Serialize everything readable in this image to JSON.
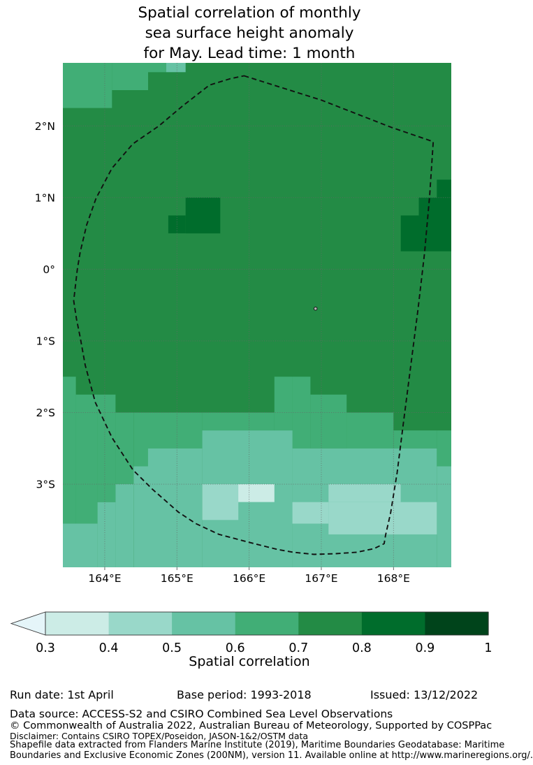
{
  "chart_data": {
    "type": "heatmap",
    "title": "Spatial correlation of monthly sea surface height anomaly for May. Lead time: 1 month",
    "title_lines": [
      "Spatial correlation of monthly",
      "sea surface height anomaly",
      "for May. Lead time: 1 month"
    ],
    "grid": true,
    "legend_position": "colorbar-bottom",
    "extent": {
      "lon_min": 163.42,
      "lon_max": 168.8,
      "lat_min": -4.16,
      "lat_max": 2.88
    },
    "x_ticks": [
      {
        "label": "164°E",
        "lon": 164
      },
      {
        "label": "165°E",
        "lon": 165
      },
      {
        "label": "166°E",
        "lon": 166
      },
      {
        "label": "167°E",
        "lon": 167
      },
      {
        "label": "168°E",
        "lon": 168
      }
    ],
    "y_ticks": [
      {
        "label": "2°N",
        "lat": 2
      },
      {
        "label": "1°N",
        "lat": 1
      },
      {
        "label": "0°",
        "lat": 0
      },
      {
        "label": "1°S",
        "lat": -1
      },
      {
        "label": "2°S",
        "lat": -2
      },
      {
        "label": "3°S",
        "lat": -3
      }
    ],
    "bins": {
      "under": "#e5f5f9",
      "b34": "#ccece6",
      "b45": "#99d8c9",
      "b56": "#66c2a4",
      "b67": "#41ae76",
      "b78": "#238b45",
      "b89": "#006d2c",
      "b91": "#00441b"
    },
    "background_bin": "b78",
    "regions": [
      {
        "bin": "b67",
        "lon": [
          163.42,
          164.1
        ],
        "lat": [
          2.25,
          2.88
        ]
      },
      {
        "bin": "b67",
        "lon": [
          164.1,
          164.6
        ],
        "lat": [
          2.5,
          2.88
        ]
      },
      {
        "bin": "b67",
        "lon": [
          164.6,
          164.85
        ],
        "lat": [
          2.75,
          2.88
        ]
      },
      {
        "bin": "b56",
        "lon": [
          164.85,
          165.12
        ],
        "lat": [
          2.75,
          2.88
        ]
      },
      {
        "bin": "b89",
        "lon": [
          165.12,
          165.6
        ],
        "lat": [
          0.5,
          1.0
        ]
      },
      {
        "bin": "b89",
        "lon": [
          164.88,
          165.12
        ],
        "lat": [
          0.5,
          0.75
        ]
      },
      {
        "bin": "b89",
        "lon": [
          168.6,
          168.8
        ],
        "lat": [
          1.0,
          1.25
        ]
      },
      {
        "bin": "b89",
        "lon": [
          168.35,
          168.8
        ],
        "lat": [
          0.25,
          1.0
        ]
      },
      {
        "bin": "b89",
        "lon": [
          168.1,
          168.35
        ],
        "lat": [
          0.25,
          0.75
        ]
      },
      {
        "bin": "b67",
        "lon": [
          163.42,
          163.6
        ],
        "lat": [
          -3.55,
          -1.5
        ]
      },
      {
        "bin": "b67",
        "lon": [
          163.6,
          163.9
        ],
        "lat": [
          -3.55,
          -1.75
        ]
      },
      {
        "bin": "b67",
        "lon": [
          163.9,
          164.15
        ],
        "lat": [
          -3.25,
          -1.75
        ]
      },
      {
        "bin": "b67",
        "lon": [
          164.15,
          164.4
        ],
        "lat": [
          -3.0,
          -2.0
        ]
      },
      {
        "bin": "b67",
        "lon": [
          164.4,
          164.6
        ],
        "lat": [
          -2.75,
          -2.0
        ]
      },
      {
        "bin": "b67",
        "lon": [
          164.6,
          165.35
        ],
        "lat": [
          -2.5,
          -2.0
        ]
      },
      {
        "bin": "b67",
        "lon": [
          165.35,
          166.35
        ],
        "lat": [
          -2.25,
          -2.0
        ]
      },
      {
        "bin": "b67",
        "lon": [
          166.35,
          166.6
        ],
        "lat": [
          -2.25,
          -1.5
        ]
      },
      {
        "bin": "b67",
        "lon": [
          166.6,
          166.85
        ],
        "lat": [
          -2.5,
          -1.5
        ]
      },
      {
        "bin": "b67",
        "lon": [
          166.85,
          167.35
        ],
        "lat": [
          -2.5,
          -1.75
        ]
      },
      {
        "bin": "b67",
        "lon": [
          167.35,
          168.0
        ],
        "lat": [
          -2.5,
          -2.0
        ]
      },
      {
        "bin": "b67",
        "lon": [
          168.0,
          168.6
        ],
        "lat": [
          -2.5,
          -2.25
        ]
      },
      {
        "bin": "b67",
        "lon": [
          168.6,
          168.8
        ],
        "lat": [
          -2.75,
          -2.25
        ]
      },
      {
        "bin": "b56",
        "lon": [
          163.42,
          163.9
        ],
        "lat": [
          -4.16,
          -3.55
        ]
      },
      {
        "bin": "b56",
        "lon": [
          163.9,
          164.15
        ],
        "lat": [
          -4.16,
          -3.25
        ]
      },
      {
        "bin": "b56",
        "lon": [
          164.15,
          164.4
        ],
        "lat": [
          -4.16,
          -3.0
        ]
      },
      {
        "bin": "b56",
        "lon": [
          164.4,
          164.6
        ],
        "lat": [
          -4.16,
          -2.75
        ]
      },
      {
        "bin": "b56",
        "lon": [
          164.6,
          165.35
        ],
        "lat": [
          -4.16,
          -2.5
        ]
      },
      {
        "bin": "b56",
        "lon": [
          165.35,
          166.6
        ],
        "lat": [
          -4.16,
          -2.25
        ]
      },
      {
        "bin": "b56",
        "lon": [
          166.6,
          168.6
        ],
        "lat": [
          -4.16,
          -2.5
        ]
      },
      {
        "bin": "b56",
        "lon": [
          168.6,
          168.8
        ],
        "lat": [
          -4.16,
          -2.75
        ]
      },
      {
        "bin": "b45",
        "lon": [
          165.35,
          165.85
        ],
        "lat": [
          -3.5,
          -3.0
        ]
      },
      {
        "bin": "b45",
        "lon": [
          167.1,
          168.1
        ],
        "lat": [
          -3.25,
          -3.0
        ]
      },
      {
        "bin": "b45",
        "lon": [
          166.6,
          167.1
        ],
        "lat": [
          -3.55,
          -3.25
        ]
      },
      {
        "bin": "b45",
        "lon": [
          167.1,
          168.6
        ],
        "lat": [
          -3.7,
          -3.25
        ]
      },
      {
        "bin": "b34",
        "lon": [
          165.85,
          166.35
        ],
        "lat": [
          -3.25,
          -3.0
        ]
      }
    ],
    "eez_boundary": {
      "style": "dashed",
      "color": "#111111",
      "points": [
        [
          165.93,
          2.7
        ],
        [
          167.0,
          2.36
        ],
        [
          167.97,
          1.98
        ],
        [
          168.55,
          1.78
        ],
        [
          168.5,
          1.02
        ],
        [
          168.43,
          0.23
        ],
        [
          168.34,
          -0.55
        ],
        [
          168.24,
          -1.34
        ],
        [
          168.14,
          -2.12
        ],
        [
          168.05,
          -2.84
        ],
        [
          167.96,
          -3.4
        ],
        [
          167.89,
          -3.71
        ],
        [
          167.87,
          -3.83
        ],
        [
          167.73,
          -3.9
        ],
        [
          167.49,
          -3.95
        ],
        [
          167.2,
          -3.97
        ],
        [
          166.9,
          -3.98
        ],
        [
          166.61,
          -3.95
        ],
        [
          166.39,
          -3.91
        ],
        [
          166.03,
          -3.82
        ],
        [
          165.58,
          -3.7
        ],
        [
          165.26,
          -3.55
        ],
        [
          165.02,
          -3.39
        ],
        [
          164.66,
          -3.07
        ],
        [
          164.39,
          -2.8
        ],
        [
          164.1,
          -2.35
        ],
        [
          163.87,
          -1.86
        ],
        [
          163.73,
          -1.34
        ],
        [
          163.66,
          -0.95
        ],
        [
          163.61,
          -0.7
        ],
        [
          163.57,
          -0.44
        ],
        [
          163.62,
          0.0
        ],
        [
          163.66,
          0.24
        ],
        [
          163.75,
          0.62
        ],
        [
          163.88,
          0.99
        ],
        [
          164.1,
          1.41
        ],
        [
          164.39,
          1.75
        ],
        [
          164.75,
          2.0
        ],
        [
          165.08,
          2.28
        ],
        [
          165.45,
          2.57
        ],
        [
          165.74,
          2.66
        ]
      ]
    },
    "island": {
      "lon": 166.92,
      "lat": -0.55
    }
  },
  "colorbar": {
    "label": "Spatial correlation",
    "ticks": [
      "0.3",
      "0.4",
      "0.5",
      "0.6",
      "0.7",
      "0.8",
      "0.9",
      "1"
    ],
    "segment_colors": [
      "#ccece6",
      "#99d8c9",
      "#66c2a4",
      "#41ae76",
      "#238b45",
      "#006d2c",
      "#00441b"
    ],
    "under_arrow_color": "#e5f5f9"
  },
  "footer": {
    "run_date": "Run date: 1st April",
    "base_period": "Base period: 1993-2018",
    "issued": "Issued: 13/12/2022",
    "data_source": "Data source: ACCESS-S2 and CSIRO Combined Sea Level Observations",
    "copyright": "© Commonwealth of Australia 2022, Australian Bureau of Meteorology, Supported by COSPPac",
    "disclaimer": "Disclaimer: Contains CSIRO TOPEX/Poseidon, JASON-1&2/OSTM data",
    "shapefile_1": "Shapefile data extracted from Flanders Marine Institute (2019), Maritime Boundaries Geodatabase: Maritime",
    "shapefile_2": "Boundaries and Exclusive Economic Zones (200NM), version 11. Available online at http://www.marineregions.org/."
  }
}
